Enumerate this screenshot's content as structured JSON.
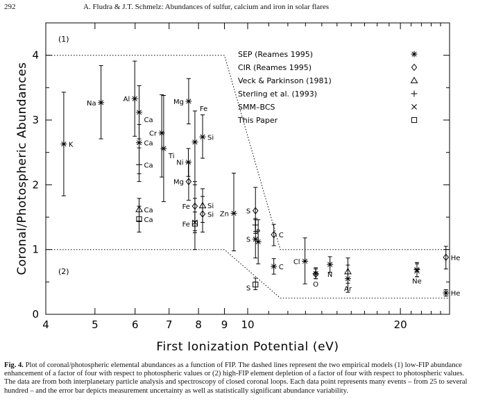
{
  "page_number": "292",
  "running_head": "A. Fludra & J.T. Schmelz: Abundances of sulfur, calcium and iron in solar flares",
  "caption": {
    "lead": "Fig. 4.",
    "text": " Plot of coronal/photospheric elemental abundances as a function of FIP. The dashed lines represent the two empirical models (1) low-FIP abundance enhancement of a factor of four with respect to photospheric values or (2) high-FIP element depletion of a factor of four with respect to photospheric values. The data are from both interplanetary particle analysis and spectroscopy of closed coronal loops. Each data point represents many events – from 25 to several hundred – and the error bar depicts measurement uncertainty as well as statistically significant abundance variability."
  },
  "chart_data": {
    "type": "scatter",
    "title": "",
    "xlabel": "First Ionization Potential (eV)",
    "ylabel": "Coronal/Photospheric Abundances",
    "xscale": "log",
    "xlim": [
      4,
      25
    ],
    "ylim": [
      0,
      4.5
    ],
    "xticks": [
      "4",
      "5",
      "6",
      "7",
      "8",
      "9",
      "10",
      "20"
    ],
    "yticks": [
      "0",
      "1",
      "2",
      "3",
      "4"
    ],
    "legend_position": "top-right",
    "region_labels": [
      "(1)",
      "(2)"
    ],
    "models": [
      {
        "name": "(1)",
        "points": [
          [
            4,
            4
          ],
          [
            9,
            4
          ],
          [
            11.6,
            1
          ],
          [
            25,
            1
          ]
        ]
      },
      {
        "name": "(2)",
        "points": [
          [
            4,
            1
          ],
          [
            9,
            1
          ],
          [
            11.6,
            0.25
          ],
          [
            25,
            0.25
          ]
        ]
      }
    ],
    "series": [
      {
        "name": "SEP (Reames 1995)",
        "marker": "asterisk",
        "points": [
          {
            "label": "K",
            "x": 4.34,
            "y": 2.63,
            "lo": 1.83,
            "hi": 3.43
          },
          {
            "label": "Na",
            "x": 5.14,
            "y": 3.27,
            "lo": 2.71,
            "hi": 3.84
          },
          {
            "label": "Al",
            "x": 5.99,
            "y": 3.33,
            "lo": 2.75,
            "hi": 3.91
          },
          {
            "label": "Ca",
            "x": 6.11,
            "y": 3.12,
            "lo": 2.71,
            "hi": 3.53
          },
          {
            "label": "Ca",
            "x": 6.11,
            "y": 2.65,
            "lo": 2.17,
            "hi": 2.93
          },
          {
            "label": "Ti",
            "x": 6.83,
            "y": 2.56,
            "lo": 1.74,
            "hi": 3.38
          },
          {
            "label": "Cr",
            "x": 6.77,
            "y": 2.8,
            "lo": 2.12,
            "hi": 3.39
          },
          {
            "label": "Mg",
            "x": 7.65,
            "y": 3.29,
            "lo": 2.94,
            "hi": 3.64
          },
          {
            "label": "Fe",
            "x": 7.87,
            "y": 2.66,
            "lo": 2.0,
            "hi": 3.14
          },
          {
            "label": "Ni",
            "x": 7.64,
            "y": 2.35,
            "lo": 2.13,
            "hi": 2.56
          },
          {
            "label": "Si",
            "x": 8.15,
            "y": 2.74,
            "lo": 2.41,
            "hi": 3.08
          },
          {
            "label": "Zn",
            "x": 9.39,
            "y": 1.56,
            "lo": 0.98,
            "hi": 2.18
          },
          {
            "label": "S",
            "x": 10.36,
            "y": 1.16,
            "lo": 0.87,
            "hi": 1.46
          },
          {
            "label": "P",
            "x": 10.49,
            "y": 1.12,
            "lo": 0.78,
            "hi": 1.46
          },
          {
            "label": "C",
            "x": 11.26,
            "y": 0.74,
            "lo": 0.62,
            "hi": 0.86
          },
          {
            "label": "Cl",
            "x": 12.97,
            "y": 0.82,
            "lo": 0.47,
            "hi": 1.18
          },
          {
            "label": "O",
            "x": 13.62,
            "y": 0.63,
            "lo": 0.55,
            "hi": 0.72
          },
          {
            "label": "N",
            "x": 14.53,
            "y": 0.77,
            "lo": 0.65,
            "hi": 0.89
          },
          {
            "label": "Ar",
            "x": 15.76,
            "y": 0.55,
            "lo": 0.34,
            "hi": 0.76
          },
          {
            "label": "Ne",
            "x": 21.56,
            "y": 0.69,
            "lo": 0.58,
            "hi": 0.8
          },
          {
            "label": "He",
            "x": 24.59,
            "y": 0.33,
            "lo": 0.28,
            "hi": 0.38
          }
        ]
      },
      {
        "name": "CIR (Reames 1995)",
        "marker": "diamond",
        "points": [
          {
            "label": "Mg",
            "x": 7.65,
            "y": 2.05,
            "lo": 1.76,
            "hi": 2.35
          },
          {
            "label": "Fe",
            "x": 7.87,
            "y": 1.67,
            "lo": 1.29,
            "hi": 2.05
          },
          {
            "label": "Si",
            "x": 8.15,
            "y": 1.55,
            "lo": 1.27,
            "hi": 1.82
          },
          {
            "label": "S",
            "x": 10.36,
            "y": 1.6,
            "lo": 1.25,
            "hi": 1.96
          },
          {
            "label": "C",
            "x": 11.26,
            "y": 1.23,
            "lo": 1.06,
            "hi": 1.39
          },
          {
            "label": "O",
            "x": 13.62,
            "y": 0.62,
            "lo": 0.55,
            "hi": 0.7
          },
          {
            "label": "He",
            "x": 24.59,
            "y": 0.88,
            "lo": 0.7,
            "hi": 1.05
          }
        ]
      },
      {
        "name": "Veck & Parkinson (1981)",
        "marker": "triangle",
        "points": [
          {
            "label": "Ca",
            "x": 6.11,
            "y": 1.62,
            "lo": 1.44,
            "hi": 1.79
          },
          {
            "label": "Si",
            "x": 8.15,
            "y": 1.68,
            "lo": 1.42,
            "hi": 1.94
          },
          {
            "label": "Ar",
            "x": 15.76,
            "y": 0.66,
            "lo": 0.48,
            "hi": 0.87
          }
        ]
      },
      {
        "name": "Sterling et al. (1993)",
        "marker": "plus",
        "points": [
          {
            "label": "Ca",
            "x": 6.11,
            "y": 2.31,
            "lo": 2.05,
            "hi": 2.57
          },
          {
            "label": "S",
            "x": 10.36,
            "y": 1.38,
            "lo": 1.28,
            "hi": 1.48
          }
        ]
      },
      {
        "name": "SMM–BCS",
        "marker": "cross",
        "points": [
          {
            "label": "Fe",
            "x": 7.87,
            "y": 1.42,
            "lo": 1.26,
            "hi": 1.58
          },
          {
            "label": "Ne",
            "x": 21.56,
            "y": 0.67,
            "lo": 0.58,
            "hi": 0.78
          }
        ]
      },
      {
        "name": "This Paper",
        "marker": "square",
        "points": [
          {
            "label": "Ca",
            "x": 6.11,
            "y": 1.47,
            "lo": 1.27,
            "hi": 1.67
          },
          {
            "label": "Fe",
            "x": 7.87,
            "y": 1.4,
            "lo": 1.0,
            "hi": 1.79
          },
          {
            "label": "S",
            "x": 10.36,
            "y": 0.46,
            "lo": 0.38,
            "hi": 0.56
          }
        ]
      }
    ],
    "annotations": [
      {
        "text": "K",
        "x": 4.34,
        "y": 2.63,
        "pos": "right"
      },
      {
        "text": "Na",
        "x": 5.14,
        "y": 3.27,
        "pos": "left"
      },
      {
        "text": "Al",
        "x": 5.99,
        "y": 3.33,
        "pos": "left"
      },
      {
        "text": "Ca",
        "x": 6.11,
        "y": 3.12,
        "pos": "right-low"
      },
      {
        "text": "Ca",
        "x": 6.11,
        "y": 2.65,
        "pos": "right"
      },
      {
        "text": "Ca",
        "x": 6.11,
        "y": 2.31,
        "pos": "right"
      },
      {
        "text": "Ca",
        "x": 6.11,
        "y": 1.62,
        "pos": "right"
      },
      {
        "text": "Ca",
        "x": 6.11,
        "y": 1.47,
        "pos": "right"
      },
      {
        "text": "Ti",
        "x": 6.83,
        "y": 2.56,
        "pos": "right-low"
      },
      {
        "text": "Cr",
        "x": 6.77,
        "y": 2.8,
        "pos": "left"
      },
      {
        "text": "Mg",
        "x": 7.65,
        "y": 3.29,
        "pos": "left"
      },
      {
        "text": "Fe",
        "x": 7.87,
        "y": 3.29,
        "pos": "right-low"
      },
      {
        "text": "Si",
        "x": 8.15,
        "y": 2.74,
        "pos": "right"
      },
      {
        "text": "Ni",
        "x": 7.64,
        "y": 2.35,
        "pos": "left"
      },
      {
        "text": "Mg",
        "x": 7.65,
        "y": 2.05,
        "pos": "left"
      },
      {
        "text": "Fe",
        "x": 7.87,
        "y": 1.67,
        "pos": "left"
      },
      {
        "text": "Si",
        "x": 8.15,
        "y": 1.68,
        "pos": "right"
      },
      {
        "text": "Si",
        "x": 8.15,
        "y": 1.55,
        "pos": "right"
      },
      {
        "text": "Fe",
        "x": 7.87,
        "y": 1.4,
        "pos": "left"
      },
      {
        "text": "Zn",
        "x": 9.39,
        "y": 1.56,
        "pos": "left"
      },
      {
        "text": "S",
        "x": 10.36,
        "y": 1.6,
        "pos": "left"
      },
      {
        "text": "P",
        "x": 10.49,
        "y": 1.12,
        "pos": "above"
      },
      {
        "text": "S",
        "x": 10.36,
        "y": 1.16,
        "pos": "left"
      },
      {
        "text": "C",
        "x": 11.26,
        "y": 1.23,
        "pos": "right"
      },
      {
        "text": "C",
        "x": 11.26,
        "y": 0.74,
        "pos": "right"
      },
      {
        "text": "S",
        "x": 10.36,
        "y": 0.41,
        "pos": "left"
      },
      {
        "text": "Cl",
        "x": 12.97,
        "y": 0.82,
        "pos": "left"
      },
      {
        "text": "O",
        "x": 13.62,
        "y": 0.62,
        "pos": "below"
      },
      {
        "text": "N",
        "x": 14.53,
        "y": 0.77,
        "pos": "below"
      },
      {
        "text": "Ar",
        "x": 15.76,
        "y": 0.55,
        "pos": "below"
      },
      {
        "text": "Ne",
        "x": 21.56,
        "y": 0.67,
        "pos": "below"
      },
      {
        "text": "He",
        "x": 24.59,
        "y": 0.88,
        "pos": "right"
      },
      {
        "text": "He",
        "x": 24.59,
        "y": 0.33,
        "pos": "right"
      }
    ]
  }
}
